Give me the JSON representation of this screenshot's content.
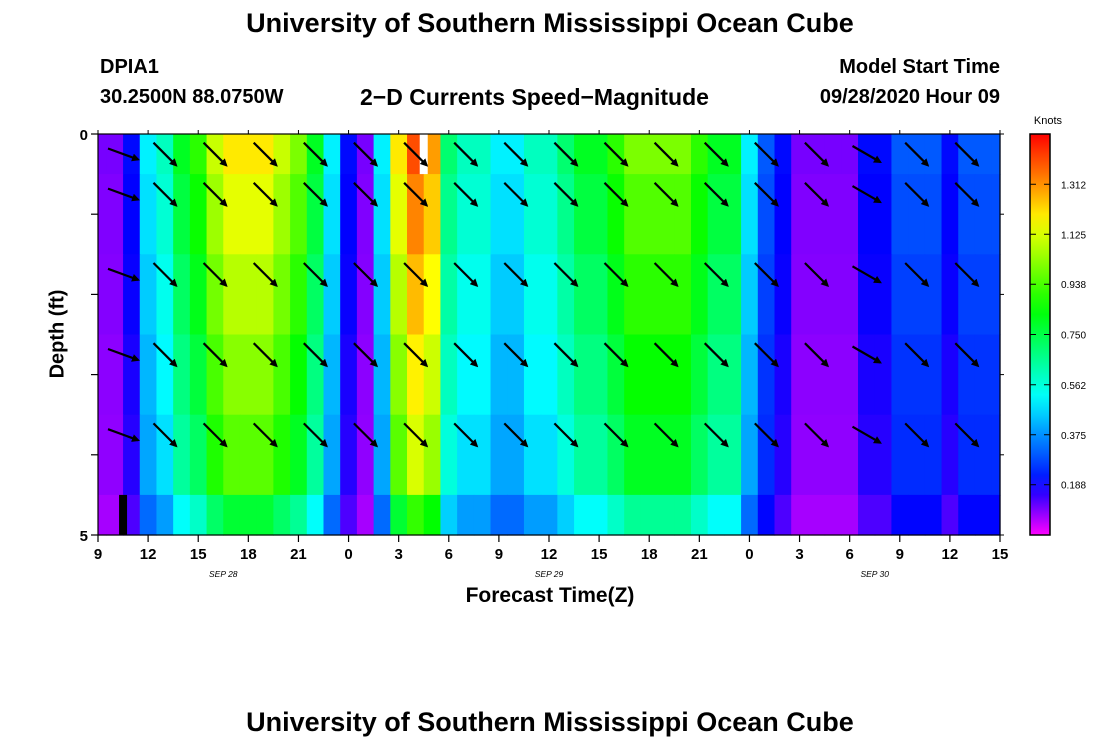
{
  "header": {
    "title": "University of Southern Mississippi Ocean Cube",
    "station": "DPIA1",
    "coords": "30.2500N 88.0750W",
    "subtitle": "2−D Currents Speed−Magnitude",
    "model_start_label": "Model Start Time",
    "model_start_value": "09/28/2020 Hour 09"
  },
  "footer": {
    "title": "University of Southern Mississippi Ocean Cube"
  },
  "chart_data": {
    "type": "heatmap",
    "title": "2−D Currents Speed−Magnitude",
    "xlabel": "Forecast Time(Z)",
    "ylabel": "Depth (ft)",
    "xlim": [
      9,
      63
    ],
    "ylim": [
      0,
      5
    ],
    "x_unit": "hours since SEP 28 00Z",
    "x_ticks": [
      9,
      12,
      15,
      18,
      21,
      24,
      27,
      30,
      33,
      36,
      39,
      42,
      45,
      48,
      51,
      54,
      57,
      60,
      63
    ],
    "x_tick_labels": [
      "9",
      "12",
      "15",
      "18",
      "21",
      "0",
      "3",
      "6",
      "9",
      "12",
      "15",
      "18",
      "21",
      "0",
      "3",
      "6",
      "9",
      "12",
      "15"
    ],
    "y_tick_labels": [
      "0",
      "5"
    ],
    "date_labels": [
      {
        "text": "SEP 28",
        "x": 16.5
      },
      {
        "text": "SEP 29",
        "x": 36
      },
      {
        "text": "SEP 30",
        "x": 55.5
      }
    ],
    "colorbar": {
      "label": "Knots",
      "min": 0,
      "max": 1.5,
      "tick_values": [
        0.188,
        0.375,
        0.562,
        0.75,
        0.938,
        1.125,
        1.312
      ],
      "tick_labels": [
        "0.188",
        "0.375",
        "0.562",
        "0.750",
        "0.938",
        "1.125",
        "1.312"
      ]
    },
    "depth_rows": [
      "0.0-0.5",
      "0.5-1.5",
      "1.5-2.5",
      "2.5-3.5",
      "3.5-4.5",
      "4.5-5.0"
    ],
    "speed_profile": {
      "hours": [
        9,
        10,
        11,
        12,
        13,
        14,
        15,
        16,
        17,
        18,
        19,
        20,
        21,
        22,
        23,
        24,
        25,
        26,
        27,
        28,
        29,
        30,
        31,
        32,
        33,
        34,
        35,
        36,
        37,
        38,
        39,
        40,
        41,
        42,
        43,
        44,
        45,
        46,
        47,
        48,
        49,
        50,
        51,
        52,
        53,
        54,
        55,
        56,
        57,
        58,
        59,
        60,
        61,
        62,
        63
      ],
      "values": [
        0.1,
        0.1,
        0.2,
        0.5,
        0.6,
        0.8,
        0.9,
        1.1,
        1.2,
        1.2,
        1.2,
        1.1,
        1.0,
        0.8,
        0.5,
        0.2,
        0.1,
        0.5,
        1.2,
        1.4,
        1.3,
        0.7,
        0.6,
        0.6,
        0.5,
        0.5,
        0.6,
        0.6,
        0.7,
        0.8,
        0.8,
        0.9,
        1.0,
        1.0,
        1.0,
        1.0,
        0.9,
        0.8,
        0.8,
        0.5,
        0.3,
        0.2,
        0.1,
        0.1,
        0.1,
        0.1,
        0.2,
        0.2,
        0.3,
        0.3,
        0.3,
        0.2,
        0.3,
        0.3,
        0.3
      ]
    },
    "depth_factors": [
      1.0,
      0.95,
      0.9,
      0.85,
      0.8,
      0.65
    ],
    "vectors": {
      "hours": [
        10.5,
        13,
        16,
        19,
        22,
        25,
        28,
        31,
        34,
        37,
        40,
        43,
        46,
        49,
        52,
        55,
        58,
        61
      ],
      "direction_deg": [
        110,
        135,
        135,
        135,
        135,
        135,
        135,
        135,
        135,
        135,
        135,
        135,
        135,
        135,
        135,
        120,
        135,
        135
      ],
      "rows": [
        0,
        1,
        2,
        3,
        4
      ]
    },
    "markers": [
      {
        "x": 10.5,
        "row": 5,
        "color": "#000000"
      },
      {
        "x": 28.5,
        "row": 0,
        "color": "#ffffff"
      }
    ]
  }
}
